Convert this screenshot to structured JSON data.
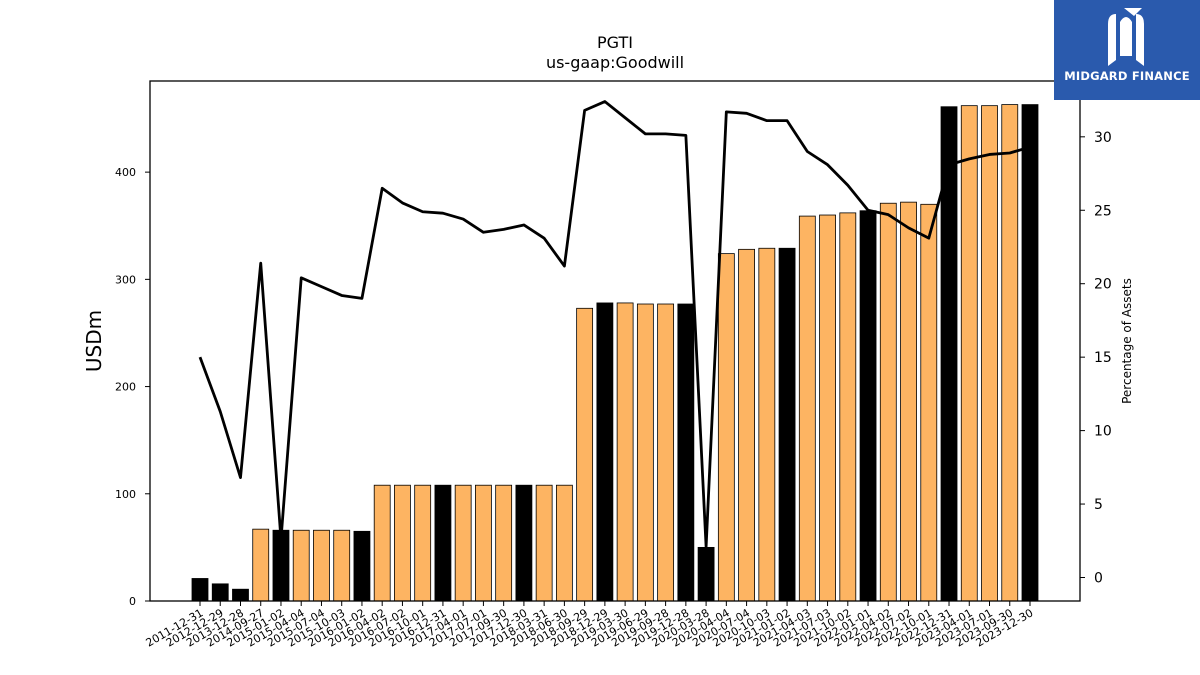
{
  "chart_data": {
    "type": "bar",
    "title": "PGTI",
    "subtitle": "us-gaap:Goodwill",
    "ylabel": "USDm",
    "y2label": "Percentage of Assets",
    "ylim": [
      0,
      485
    ],
    "y2lim": [
      -1.6,
      33.8
    ],
    "yticks": [
      0,
      100,
      200,
      300,
      400
    ],
    "y2ticks": [
      0,
      5,
      10,
      15,
      20,
      25,
      30
    ],
    "grid": false,
    "colors": {
      "annual": "#000000",
      "quarterly": "#fdb462",
      "line": "#000000"
    },
    "categories": [
      "2011-12-31",
      "2012-12-29",
      "2013-12-28",
      "2014-09-27",
      "2015-01-02",
      "2015-04-04",
      "2015-07-04",
      "2015-10-03",
      "2016-01-02",
      "2016-04-02",
      "2016-07-02",
      "2016-10-01",
      "2016-12-31",
      "2017-04-01",
      "2017-07-01",
      "2017-09-30",
      "2017-12-30",
      "2018-03-31",
      "2018-06-30",
      "2018-09-29",
      "2018-12-29",
      "2019-03-30",
      "2019-06-29",
      "2019-09-28",
      "2019-12-28",
      "2020-03-28",
      "2020-04-04",
      "2020-07-04",
      "2020-10-03",
      "2021-01-02",
      "2021-04-03",
      "2021-07-03",
      "2021-10-02",
      "2022-01-01",
      "2022-04-02",
      "2022-07-02",
      "2022-10-01",
      "2022-12-31",
      "2023-04-01",
      "2023-07-01",
      "2023-09-30",
      "2023-12-30"
    ],
    "bars": {
      "values": [
        21,
        16,
        11,
        67,
        66,
        66,
        66,
        66,
        65,
        108,
        108,
        108,
        108,
        108,
        108,
        108,
        108,
        108,
        108,
        273,
        278,
        278,
        277,
        277,
        277,
        50,
        324,
        328,
        329,
        329,
        359,
        360,
        362,
        364,
        371,
        372,
        370,
        461,
        462,
        462,
        463,
        463
      ],
      "annual": [
        true,
        true,
        true,
        false,
        true,
        false,
        false,
        false,
        true,
        false,
        false,
        false,
        true,
        false,
        false,
        false,
        true,
        false,
        false,
        false,
        true,
        false,
        false,
        false,
        true,
        true,
        false,
        false,
        false,
        true,
        false,
        false,
        false,
        true,
        false,
        false,
        false,
        true,
        false,
        false,
        false,
        true
      ]
    },
    "line": {
      "name": "Percentage of Assets",
      "values": [
        15.0,
        11.3,
        6.8,
        21.4,
        2.6,
        20.4,
        19.8,
        19.2,
        19.0,
        26.5,
        25.5,
        24.9,
        24.8,
        24.4,
        23.5,
        23.7,
        24.0,
        23.1,
        21.2,
        31.8,
        32.4,
        31.3,
        30.2,
        30.2,
        30.1,
        2.1,
        31.7,
        31.6,
        31.1,
        31.1,
        29.0,
        28.1,
        26.7,
        25.0,
        24.7,
        23.8,
        23.1,
        28.1,
        28.5,
        28.8,
        28.9,
        29.3
      ]
    }
  },
  "logo": {
    "text": "MIDGARD FINANCE",
    "icon": "midgard-m-icon"
  }
}
